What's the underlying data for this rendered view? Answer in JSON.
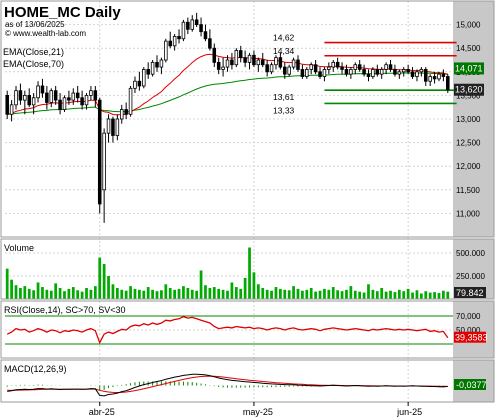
{
  "header": {
    "title": "HOME_MC Daily",
    "asof": "as of 13/06/2025",
    "site": "© www.wealth-lab.com"
  },
  "colors": {
    "ema21": "#e00000",
    "ema70": "#008800",
    "volume": "#00aa00",
    "rsi": "#e00000",
    "rsiBand": "#008800",
    "macd": "#000000",
    "signal": "#e00000",
    "hist": "#008800",
    "resistance": "#e00000",
    "support": "#008800",
    "lastPriceTag": "#007700",
    "lastPriceTag2": "#222222"
  },
  "chart_data": [
    {
      "type": "candlestick",
      "title": "HOME_MC Daily",
      "ylim": [
        10500,
        15500
      ],
      "yticks": [
        "15,000",
        "14,500",
        "14,000",
        "13,500",
        "13,000",
        "12,500",
        "12,000",
        "11,500",
        "11,000"
      ],
      "ytick_values": [
        15000,
        14500,
        14000,
        13500,
        13000,
        12500,
        12000,
        11500,
        11000
      ],
      "xlabels": [
        "abr-25",
        "may-25",
        "jun-25"
      ],
      "xlabel_index": [
        21,
        56,
        91
      ],
      "legend": [
        "EMA(Close,21)",
        "EMA(Close,70)"
      ],
      "last_price_labels": [
        "14,071",
        "13,620"
      ],
      "last_price_values": [
        14071,
        13620
      ],
      "levels": [
        {
          "label": "14,62",
          "value": 14620,
          "kind": "resistance"
        },
        {
          "label": "14,34",
          "value": 14340,
          "kind": "resistance"
        },
        {
          "label": "13,61",
          "value": 13610,
          "kind": "support"
        },
        {
          "label": "13,33",
          "value": 13330,
          "kind": "support"
        }
      ],
      "level_start_index": 72,
      "level_end_index": 102,
      "candles": [
        [
          13500,
          13600,
          13000,
          13100
        ],
        [
          13100,
          13400,
          12950,
          13300
        ],
        [
          13300,
          13700,
          13200,
          13600
        ],
        [
          13600,
          13750,
          13300,
          13400
        ],
        [
          13400,
          13600,
          13100,
          13500
        ],
        [
          13500,
          13650,
          13250,
          13300
        ],
        [
          13300,
          13550,
          13100,
          13450
        ],
        [
          13450,
          13800,
          13350,
          13700
        ],
        [
          13700,
          13850,
          13450,
          13550
        ],
        [
          13550,
          13700,
          13200,
          13350
        ],
        [
          13350,
          13650,
          13250,
          13600
        ],
        [
          13600,
          13700,
          13300,
          13400
        ],
        [
          13400,
          13550,
          13100,
          13200
        ],
        [
          13200,
          13500,
          13150,
          13450
        ],
        [
          13450,
          13600,
          13300,
          13400
        ],
        [
          13400,
          13650,
          13300,
          13550
        ],
        [
          13550,
          13700,
          13350,
          13450
        ],
        [
          13450,
          13600,
          13200,
          13300
        ],
        [
          13300,
          13550,
          13200,
          13500
        ],
        [
          13500,
          13700,
          13400,
          13600
        ],
        [
          13600,
          13700,
          13250,
          13400
        ],
        [
          13400,
          13450,
          11000,
          11200
        ],
        [
          11500,
          12800,
          10800,
          12700
        ],
        [
          12700,
          13100,
          12500,
          13000
        ],
        [
          13000,
          13050,
          12500,
          12650
        ],
        [
          12650,
          13100,
          12550,
          13000
        ],
        [
          13000,
          13300,
          12900,
          13200
        ],
        [
          13200,
          13350,
          13000,
          13100
        ],
        [
          13100,
          13700,
          13050,
          13650
        ],
        [
          13650,
          13900,
          13550,
          13800
        ],
        [
          13800,
          14000,
          13600,
          13700
        ],
        [
          13700,
          14100,
          13650,
          14050
        ],
        [
          14050,
          14200,
          13850,
          13950
        ],
        [
          13950,
          14250,
          13900,
          14200
        ],
        [
          14200,
          14350,
          14000,
          14100
        ],
        [
          14100,
          14300,
          13950,
          14250
        ],
        [
          14250,
          14700,
          14200,
          14650
        ],
        [
          14650,
          14850,
          14500,
          14550
        ],
        [
          14550,
          14800,
          14450,
          14750
        ],
        [
          14750,
          14900,
          14600,
          14700
        ],
        [
          14700,
          15100,
          14650,
          15050
        ],
        [
          15050,
          15150,
          14800,
          14900
        ],
        [
          14900,
          15200,
          14850,
          15100
        ],
        [
          15100,
          15250,
          14950,
          15000
        ],
        [
          15000,
          15150,
          14750,
          14850
        ],
        [
          14850,
          15000,
          14650,
          14700
        ],
        [
          14700,
          14900,
          14450,
          14500
        ],
        [
          14500,
          14600,
          14100,
          14200
        ],
        [
          14200,
          14300,
          13950,
          14050
        ],
        [
          14050,
          14300,
          13900,
          14100
        ],
        [
          14100,
          14350,
          14000,
          14250
        ],
        [
          14250,
          14400,
          14050,
          14150
        ],
        [
          14150,
          14500,
          14100,
          14450
        ],
        [
          14450,
          14550,
          14200,
          14300
        ],
        [
          14300,
          14450,
          14100,
          14200
        ],
        [
          14200,
          14400,
          14050,
          14350
        ],
        [
          14350,
          14450,
          14100,
          14150
        ],
        [
          14150,
          14300,
          14000,
          14250
        ],
        [
          14250,
          14400,
          14100,
          14150
        ],
        [
          14150,
          14250,
          13900,
          14000
        ],
        [
          14000,
          14200,
          13950,
          14150
        ],
        [
          14150,
          14350,
          14050,
          14300
        ],
        [
          14300,
          14400,
          14050,
          14100
        ],
        [
          14100,
          14200,
          13850,
          13950
        ],
        [
          13950,
          14150,
          13900,
          14100
        ],
        [
          14100,
          14300,
          14050,
          14250
        ],
        [
          14250,
          14350,
          14000,
          14050
        ],
        [
          14050,
          14150,
          13850,
          13900
        ],
        [
          13900,
          14100,
          13850,
          14050
        ],
        [
          14050,
          14200,
          13950,
          14150
        ],
        [
          14150,
          14250,
          13950,
          14000
        ],
        [
          14000,
          14100,
          13850,
          13900
        ],
        [
          13900,
          14100,
          13800,
          14050
        ],
        [
          14050,
          14200,
          13950,
          14100
        ],
        [
          14100,
          14250,
          14000,
          14200
        ],
        [
          14200,
          14300,
          14050,
          14100
        ],
        [
          14100,
          14200,
          13950,
          14050
        ],
        [
          14050,
          14150,
          13900,
          13950
        ],
        [
          13950,
          14100,
          13850,
          14050
        ],
        [
          14050,
          14200,
          13950,
          14150
        ],
        [
          14150,
          14250,
          14000,
          14050
        ],
        [
          14050,
          14150,
          13900,
          13950
        ],
        [
          13950,
          14050,
          13800,
          13900
        ],
        [
          13900,
          14100,
          13850,
          14050
        ],
        [
          14050,
          14150,
          13900,
          13950
        ],
        [
          13950,
          14100,
          13850,
          14050
        ],
        [
          14050,
          14200,
          13950,
          14150
        ],
        [
          14150,
          14250,
          14000,
          14050
        ],
        [
          14050,
          14150,
          13900,
          13950
        ],
        [
          13950,
          14050,
          13850,
          14000
        ],
        [
          14000,
          14100,
          13900,
          14050
        ],
        [
          14050,
          14150,
          13950,
          14000
        ],
        [
          14000,
          14100,
          13850,
          13900
        ],
        [
          13900,
          14050,
          13800,
          14000
        ],
        [
          14000,
          14100,
          13900,
          14050
        ],
        [
          14050,
          14100,
          13700,
          13800
        ],
        [
          13800,
          13950,
          13700,
          13900
        ],
        [
          13900,
          14000,
          13750,
          13850
        ],
        [
          13850,
          14000,
          13800,
          13950
        ],
        [
          13950,
          14050,
          13800,
          13900
        ],
        [
          13900,
          13950,
          13550,
          13620
        ]
      ]
    },
    {
      "type": "bar",
      "title": "Volume",
      "yticks": [
        "500.000",
        "250.000"
      ],
      "ytick_values": [
        500000,
        250000
      ],
      "ylim": [
        0,
        620000
      ],
      "last_label": "79.842",
      "values": [
        330000,
        210000,
        150000,
        120000,
        140000,
        110000,
        95000,
        180000,
        130000,
        100000,
        90000,
        170000,
        120000,
        85000,
        110000,
        130000,
        95000,
        80000,
        120000,
        100000,
        140000,
        450000,
        380000,
        250000,
        160000,
        120000,
        100000,
        90000,
        140000,
        110000,
        100000,
        90000,
        130000,
        100000,
        85000,
        95000,
        160000,
        120000,
        100000,
        110000,
        140000,
        120000,
        100000,
        90000,
        310000,
        150000,
        120000,
        130000,
        110000,
        100000,
        90000,
        180000,
        130000,
        110000,
        230000,
        560000,
        290000,
        160000,
        120000,
        100000,
        90000,
        130000,
        110000,
        100000,
        95000,
        140000,
        110000,
        90000,
        100000,
        120000,
        80000,
        90000,
        110000,
        100000,
        130000,
        95000,
        85000,
        100000,
        140000,
        90000,
        80000,
        70000,
        160000,
        100000,
        85000,
        120000,
        80000,
        90000,
        75000,
        100000,
        85000,
        110000,
        70000,
        95000,
        60000,
        85000,
        70000,
        75000,
        65000,
        90000,
        79842
      ]
    },
    {
      "type": "line",
      "title": "RSI(Close,14), SC>70, SV<30",
      "yticks": [
        "70,000",
        "50,000"
      ],
      "ytick_values": [
        70,
        50
      ],
      "ylim": [
        10,
        90
      ],
      "bands": [
        70,
        30
      ],
      "last_label": "39,3583",
      "values": [
        44,
        47,
        52,
        50,
        51,
        47,
        49,
        52,
        50,
        47,
        50,
        49,
        46,
        49,
        48,
        50,
        49,
        47,
        50,
        52,
        49,
        32,
        44,
        47,
        45,
        48,
        51,
        50,
        55,
        57,
        56,
        59,
        57,
        60,
        58,
        60,
        64,
        63,
        65,
        66,
        69,
        67,
        68,
        66,
        64,
        62,
        60,
        55,
        52,
        53,
        54,
        53,
        55,
        54,
        53,
        54,
        52,
        53,
        52,
        50,
        52,
        53,
        52,
        50,
        52,
        53,
        51,
        50,
        51,
        52,
        51,
        49,
        51,
        52,
        53,
        52,
        51,
        50,
        51,
        52,
        51,
        50,
        49,
        51,
        50,
        51,
        52,
        51,
        50,
        51,
        50,
        51,
        50,
        49,
        50,
        51,
        48,
        49,
        47,
        48,
        39
      ]
    },
    {
      "type": "line",
      "title": "MACD(12,26,9)",
      "ylim": [
        -700,
        1000
      ],
      "last_label": "-0,0377",
      "series": [
        {
          "name": "MACD",
          "values": [
            -250,
            -220,
            -180,
            -170,
            -160,
            -170,
            -160,
            -130,
            -130,
            -150,
            -140,
            -150,
            -170,
            -160,
            -160,
            -150,
            -150,
            -160,
            -150,
            -130,
            -140,
            -420,
            -440,
            -380,
            -360,
            -320,
            -260,
            -220,
            -150,
            -80,
            -20,
            40,
            80,
            130,
            170,
            210,
            270,
            310,
            360,
            390,
            430,
            450,
            480,
            480,
            470,
            450,
            420,
            370,
            320,
            280,
            250,
            220,
            200,
            180,
            160,
            150,
            130,
            120,
            100,
            80,
            70,
            60,
            50,
            40,
            30,
            30,
            20,
            10,
            0,
            -10,
            -10,
            -20,
            -10,
            0,
            10,
            0,
            -10,
            -20,
            -10,
            0,
            -10,
            -20,
            -30,
            -20,
            -30,
            -20,
            -10,
            -20,
            -30,
            -20,
            -30,
            -20,
            -10,
            -20,
            -30,
            -30,
            -40,
            -40,
            -50,
            -60,
            -38
          ]
        },
        {
          "name": "Signal",
          "values": [
            -200,
            -205,
            -200,
            -195,
            -190,
            -186,
            -181,
            -171,
            -163,
            -160,
            -156,
            -155,
            -158,
            -158,
            -159,
            -157,
            -156,
            -157,
            -155,
            -150,
            -148,
            -202,
            -250,
            -276,
            -293,
            -298,
            -290,
            -276,
            -251,
            -217,
            -178,
            -134,
            -91,
            -47,
            -4,
            39,
            85,
            130,
            176,
            219,
            261,
            299,
            335,
            364,
            385,
            398,
            402,
            396,
            381,
            361,
            339,
            315,
            292,
            270,
            248,
            228,
            208,
            191,
            173,
            154,
            137,
            122,
            107,
            94,
            81,
            71,
            61,
            51,
            41,
            31,
            23,
            14,
            9,
            7,
            8,
            6,
            3,
            -2,
            -4,
            -3,
            -5,
            -8,
            -12,
            -14,
            -17,
            -18,
            -16,
            -17,
            -19,
            -19,
            -21,
            -21,
            -19,
            -19,
            -21,
            -23,
            -26,
            -29,
            -33,
            -38,
            -38
          ]
        }
      ]
    }
  ]
}
